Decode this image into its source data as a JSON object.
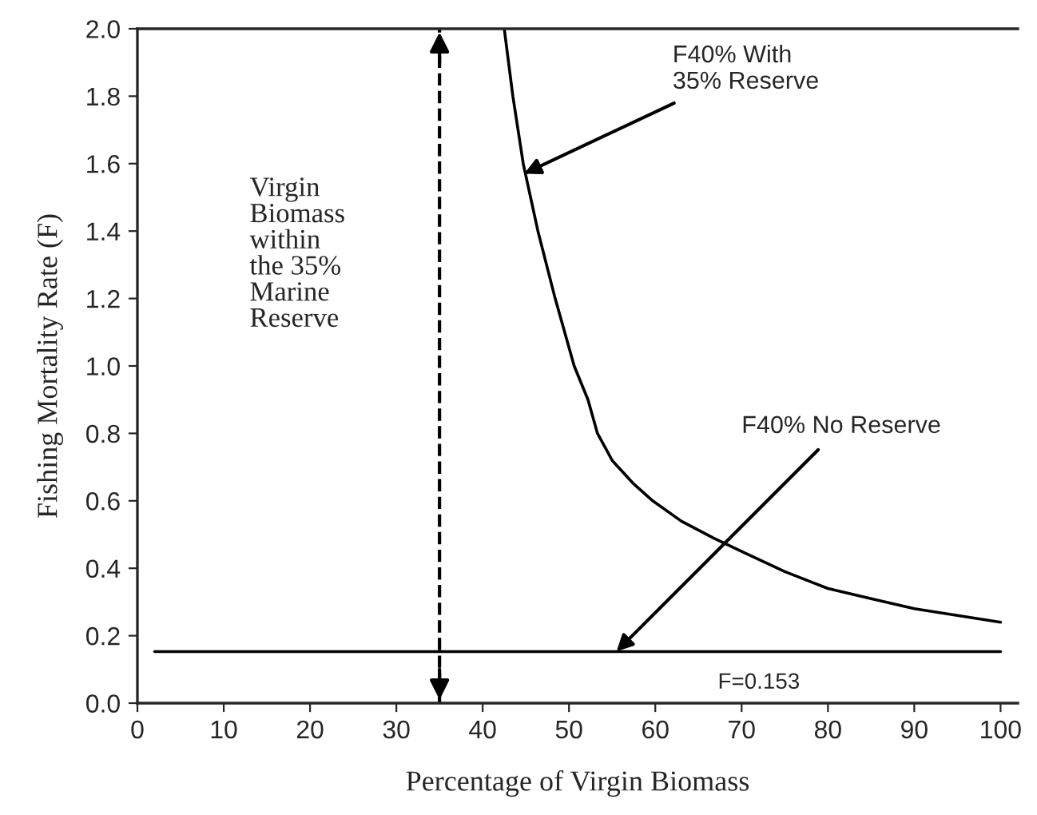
{
  "chart_data": {
    "type": "line",
    "xlabel": "Percentage of Virgin Biomass",
    "ylabel": "Fishing Mortality Rate (F)",
    "series": [
      {
        "color": "#000000",
        "x": [
          42.5,
          43.5,
          44.7,
          46.4,
          48.4,
          50.6,
          52.2,
          53.3,
          55,
          57.5,
          59.7,
          63,
          66.7,
          70,
          75,
          80,
          85,
          90,
          95,
          100
        ],
        "values": [
          2.0,
          1.8,
          1.6,
          1.4,
          1.2,
          1.0,
          0.9,
          0.8,
          0.72,
          0.65,
          0.6,
          0.54,
          0.49,
          0.45,
          0.39,
          0.34,
          0.31,
          0.28,
          0.26,
          0.24
        ]
      },
      {
        "color": "#000000",
        "x": [
          2,
          100
        ],
        "values": [
          0.153,
          0.153
        ]
      }
    ],
    "xlim": [
      0,
      102
    ],
    "xticks": [
      0,
      10,
      20,
      30,
      40,
      50,
      60,
      70,
      80,
      90,
      100
    ],
    "ylim": [
      0,
      2.0
    ],
    "yticks": [
      {
        "value": 0,
        "label": "0.0"
      },
      {
        "value": 0.2,
        "label": "0.2"
      },
      {
        "value": 0.4,
        "label": "0.4"
      },
      {
        "value": 0.6,
        "label": "0.6"
      },
      {
        "value": 0.8,
        "label": "0.8"
      },
      {
        "value": 1.0,
        "label": "1.0"
      },
      {
        "value": 1.2,
        "label": "1.2"
      },
      {
        "value": 1.4,
        "label": "1.4"
      },
      {
        "value": 1.6,
        "label": "1.6"
      },
      {
        "value": 1.8,
        "label": "1.8"
      },
      {
        "value": 2.0,
        "label": "2.0"
      }
    ],
    "ref_lines": [
      {
        "axis": "x",
        "value": 35,
        "label": "Virgin\nBiomass\nwithin\nthe 35%\nMarine\nReserve",
        "line_style": "dashed",
        "color": "#000000"
      }
    ],
    "annotations": [
      {
        "text": "F40% With\n35% Reserve",
        "x": 44.8,
        "y": 1.57
      },
      {
        "text": "F40% No Reserve",
        "x": 55.5,
        "y": 0.153
      },
      "F=0.153"
    ],
    "grid": false,
    "legend": false,
    "marker": "none",
    "line_style": "solid"
  }
}
